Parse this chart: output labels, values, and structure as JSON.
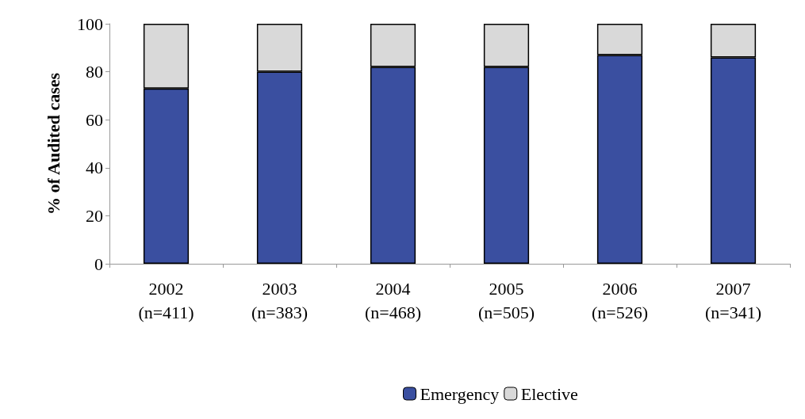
{
  "chart_data": {
    "type": "bar",
    "stacked": true,
    "ylabel": "% of Audited cases",
    "categories": [
      "2002\n(n=411)",
      "2003\n(n=383)",
      "2004\n(n=468)",
      "2005\n(n=505)",
      "2006\n(n=526)",
      "2007\n(n=341)"
    ],
    "series": [
      {
        "name": "Emergency",
        "color": "#3a4fa0",
        "values": [
          73,
          80,
          82,
          82,
          87,
          86
        ]
      },
      {
        "name": "Elective",
        "color": "#d9d9d9",
        "values": [
          27,
          20,
          18,
          18,
          13,
          14
        ]
      }
    ],
    "ylim": [
      0,
      100
    ],
    "yticks": [
      0,
      20,
      40,
      60,
      80,
      100
    ],
    "grid": false,
    "legend": "bottom"
  }
}
